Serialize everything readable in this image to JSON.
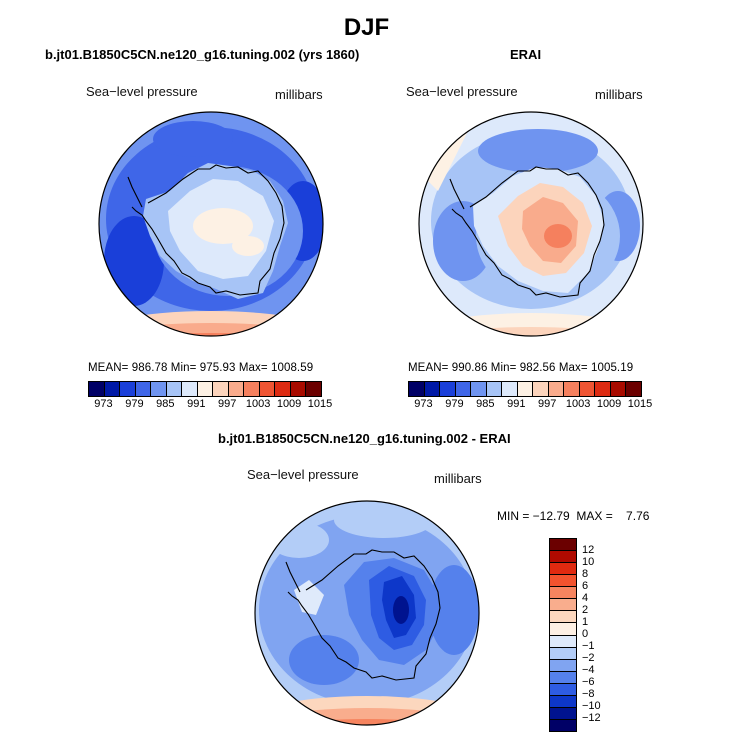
{
  "main_title": "DJF",
  "panels": [
    {
      "title": "b.jt01.B1850C5CN.ne120_g16.tuning.002 (yrs 1860)",
      "left_string": "Sea−level pressure",
      "right_string": "millibars",
      "stats": "MEAN= 986.78   Min= 975.93   Max= 1008.59",
      "colorbar_labels": [
        "973",
        "979",
        "985",
        "991",
        "997",
        "1003",
        "1009",
        "1015"
      ]
    },
    {
      "title": "ERAI",
      "left_string": "Sea−level pressure",
      "right_string": "millibars",
      "stats": "MEAN= 990.86   Min= 982.56   Max= 1005.19",
      "colorbar_labels": [
        "973",
        "979",
        "985",
        "991",
        "997",
        "1003",
        "1009",
        "1015"
      ]
    },
    {
      "title": "b.jt01.B1850C5CN.ne120_g16.tuning.002 - ERAI",
      "left_string": "Sea−level pressure",
      "right_string": "millibars",
      "minmax": "MIN = −12.79  MAX =    7.76",
      "colorbar_labels": [
        "12",
        "10",
        "8",
        "6",
        "4",
        "2",
        "1",
        "0",
        "−1",
        "−2",
        "−4",
        "−6",
        "−8",
        "−10",
        "−12"
      ]
    }
  ],
  "colors": {
    "abs_scale": [
      "#000066",
      "#0019a6",
      "#1a3fd9",
      "#3f66e8",
      "#6f94f0",
      "#a7c4f6",
      "#dde9fb",
      "#fdf1e4",
      "#fcd4bc",
      "#f9ab8c",
      "#f5805e",
      "#ef5533",
      "#dd2b12",
      "#a80b00",
      "#6b0000"
    ],
    "diff_scale": [
      "#6b0000",
      "#b00a00",
      "#e02a10",
      "#f2532e",
      "#f6845f",
      "#f9ad8d",
      "#fcd7be",
      "#fef0e4",
      "#dfeafb",
      "#b3cdf7",
      "#80a4f1",
      "#5581ec",
      "#2e5ce3",
      "#0d37c9",
      "#00138f",
      "#000066"
    ]
  }
}
